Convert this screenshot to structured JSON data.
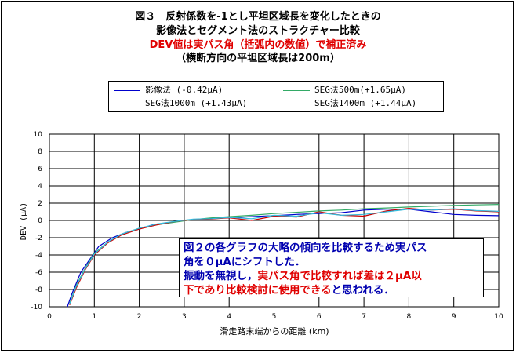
{
  "title": {
    "line1": "図３　反射係数を-1とし平坦区域長を変化したときの",
    "line2": "影像法とセグメント法のストラクチャー比較",
    "line3": "DEV値は実パス角（括弧内の数値）で補正済み",
    "line4": "（横断方向の平坦区域長は200m）"
  },
  "legend": [
    {
      "label": "影像法 (-0.42μA)",
      "color": "#0000cc"
    },
    {
      "label": "SEG法500m(+1.65μA)",
      "color": "#33aa66"
    },
    {
      "label": "SEG法1000m (+1.43μA)",
      "color": "#cc0000"
    },
    {
      "label": "SEG法1400m (+1.44μA)",
      "color": "#33bbdd"
    }
  ],
  "note": {
    "line1": "図２の各グラフの大略の傾向を比較するため実パス",
    "line2": "角を０μAにシフトした．",
    "line3a": "振動を無視し，",
    "line3b": "実パス角で比較すれば差は２μA以",
    "line4a": "下であり比較検討に使用できる",
    "line4b": "と思われる．"
  },
  "chart_data": {
    "type": "line",
    "xlabel": "滑走路末端からの距離 (km)",
    "ylabel": "DEV (μA)",
    "xlim": [
      0,
      10
    ],
    "ylim": [
      -10,
      10
    ],
    "xticks": [
      "0",
      "1",
      "2",
      "3",
      "4",
      "5",
      "6",
      "7",
      "8",
      "9",
      "10"
    ],
    "yticks": [
      "10",
      "8",
      "6",
      "4",
      "2",
      "0",
      "-2",
      "-4",
      "-6",
      "-8",
      "-10"
    ],
    "grid": true,
    "series": [
      {
        "name": "影像法 (-0.42μA)",
        "color": "#0000cc",
        "x": [
          0.4,
          0.5,
          0.7,
          0.9,
          1.1,
          1.4,
          1.7,
          2.0,
          2.3,
          2.6,
          3.0,
          3.5,
          4.0,
          4.5,
          5.0,
          5.5,
          6.0,
          6.5,
          7.0,
          7.5,
          8.0,
          8.5,
          9.0,
          9.5,
          10.0
        ],
        "y": [
          -10.0,
          -8.5,
          -6.0,
          -4.5,
          -3.0,
          -2.0,
          -1.4,
          -1.0,
          -0.5,
          -0.3,
          0.0,
          0.2,
          0.3,
          0.45,
          0.55,
          0.7,
          0.8,
          0.9,
          1.2,
          1.3,
          1.3,
          1.0,
          0.7,
          0.6,
          0.55
        ]
      },
      {
        "name": "SEG法500m(+1.65μA)",
        "color": "#33aa66",
        "x": [
          0.45,
          0.6,
          0.8,
          1.0,
          1.3,
          1.6,
          2.0,
          2.4,
          2.8,
          3.2,
          3.6,
          4.0,
          4.5,
          5.0,
          5.5,
          6.0,
          6.5,
          7.0,
          7.5,
          8.0,
          8.5,
          9.0,
          9.5,
          10.0
        ],
        "y": [
          -9.6,
          -7.5,
          -5.5,
          -3.8,
          -2.5,
          -1.6,
          -0.9,
          -0.5,
          -0.2,
          0.1,
          0.3,
          0.45,
          0.6,
          0.8,
          0.95,
          1.1,
          1.2,
          1.35,
          1.45,
          1.55,
          1.65,
          1.75,
          1.8,
          1.85
        ]
      },
      {
        "name": "SEG法1000m (+1.43μA)",
        "color": "#cc0000",
        "x": [
          0.45,
          0.6,
          0.8,
          1.0,
          1.3,
          1.6,
          2.0,
          2.4,
          2.8,
          3.2,
          3.6,
          4.0,
          4.5,
          5.0,
          5.5,
          6.0,
          6.5,
          7.0,
          7.5,
          8.0,
          8.5,
          9.0,
          9.5,
          10.0
        ],
        "y": [
          -9.8,
          -7.8,
          -5.7,
          -4.0,
          -2.6,
          -1.7,
          -1.0,
          -0.5,
          -0.1,
          0.1,
          0.15,
          0.3,
          0.0,
          0.5,
          0.4,
          1.0,
          0.6,
          0.5,
          1.1,
          1.4,
          1.2,
          1.3,
          1.1,
          1.0
        ]
      },
      {
        "name": "SEG法1400m (+1.44μA)",
        "color": "#33bbdd",
        "x": [
          0.45,
          0.6,
          0.8,
          1.0,
          1.3,
          1.6,
          2.0,
          2.4,
          2.8,
          3.2,
          3.6,
          4.0,
          4.5,
          5.0,
          5.5,
          6.0,
          6.5,
          7.0,
          7.5,
          8.0,
          8.5,
          9.0,
          9.5,
          10.0
        ],
        "y": [
          -9.7,
          -7.6,
          -5.6,
          -3.9,
          -2.5,
          -1.6,
          -0.9,
          -0.4,
          -0.1,
          0.15,
          0.2,
          0.35,
          0.2,
          0.6,
          0.5,
          0.9,
          0.6,
          0.7,
          1.0,
          1.3,
          1.2,
          1.35,
          1.15,
          1.05
        ]
      }
    ]
  }
}
